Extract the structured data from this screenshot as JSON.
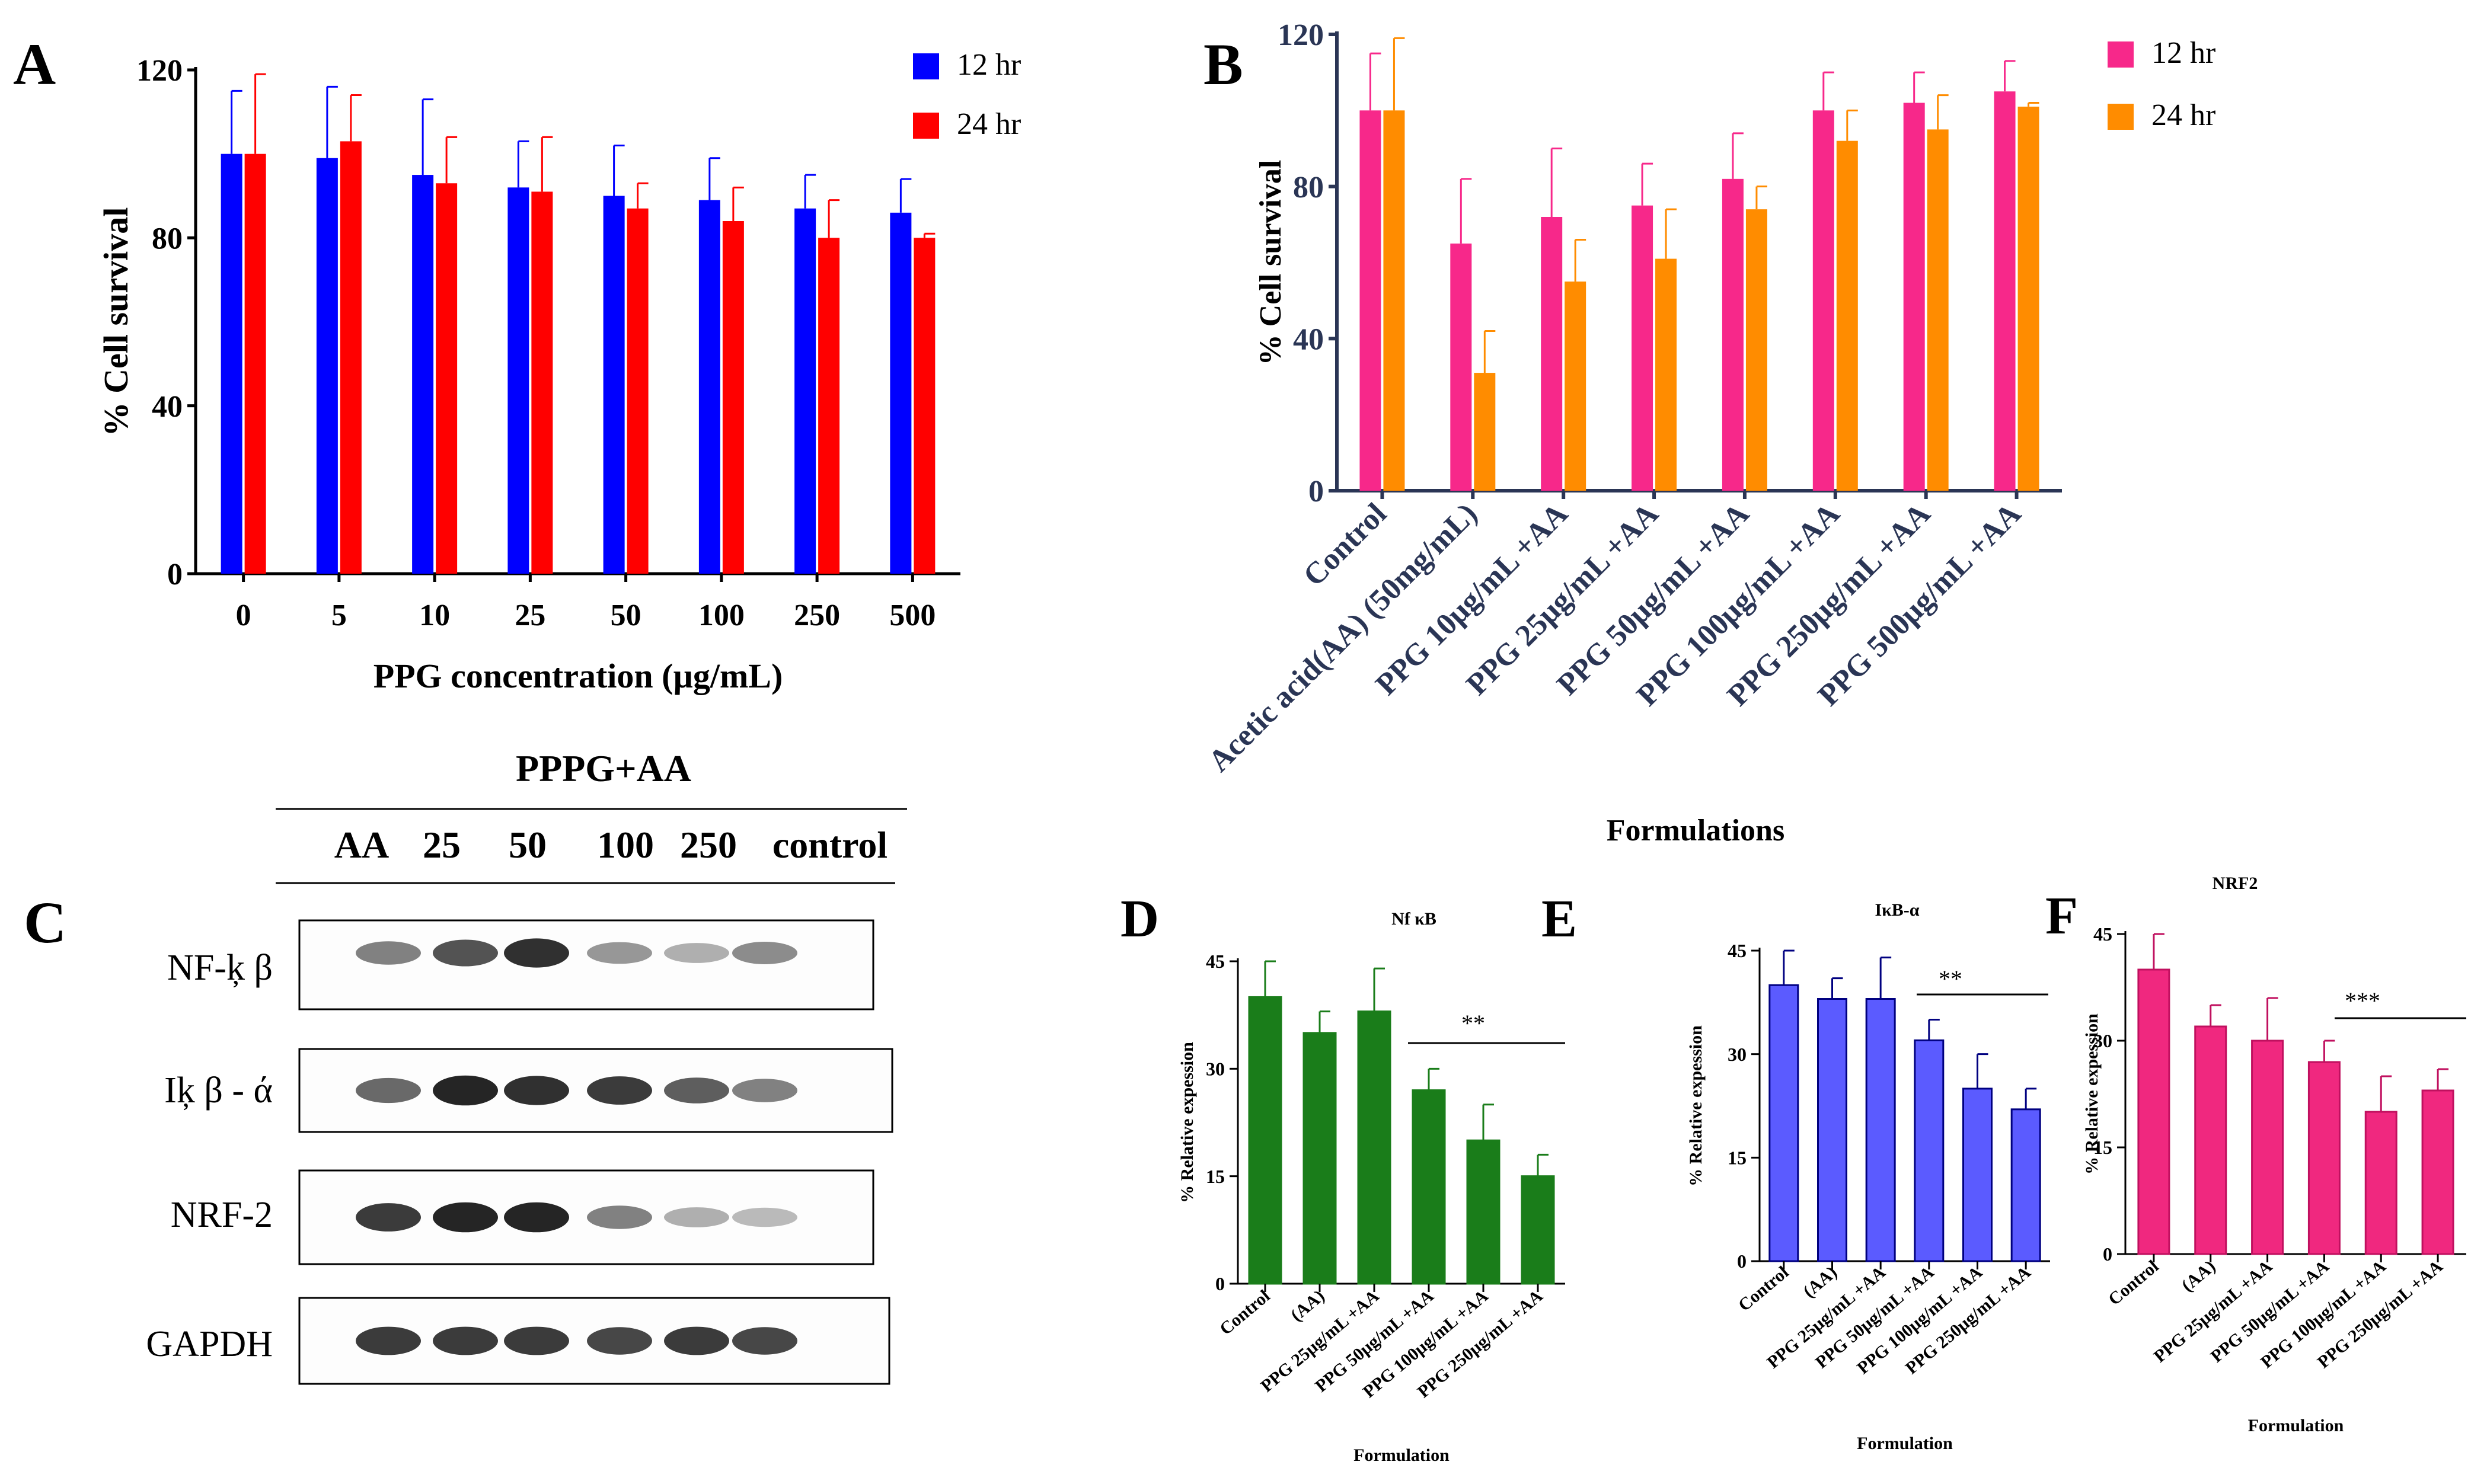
{
  "panel_labels": [
    "A",
    "B",
    "C",
    "D",
    "E",
    "F"
  ],
  "chart_data": [
    {
      "id": "A",
      "type": "bar",
      "title": "",
      "xlabel": "PPG concentration (µg/mL)",
      "ylabel": "% Cell survival",
      "ylim": [
        0,
        120
      ],
      "yticks": [
        "0",
        "40",
        "80",
        "120"
      ],
      "categories": [
        "0",
        "5",
        "10",
        "25",
        "50",
        "100",
        "250",
        "500"
      ],
      "series": [
        {
          "name": "12 hr",
          "color": "#0000ff",
          "values": [
            100,
            99,
            95,
            92,
            90,
            89,
            87,
            86
          ],
          "errors": [
            15,
            17,
            18,
            11,
            12,
            10,
            8,
            8
          ]
        },
        {
          "name": "24 hr",
          "color": "#ff0000",
          "values": [
            100,
            103,
            93,
            91,
            87,
            84,
            80,
            80
          ],
          "errors": [
            19,
            11,
            11,
            13,
            6,
            8,
            9,
            1
          ]
        }
      ],
      "legend": "top-right"
    },
    {
      "id": "B",
      "type": "bar",
      "title": "",
      "xlabel": "Formulations",
      "ylabel": "% Cell survival",
      "ylim": [
        0,
        120
      ],
      "yticks": [
        "0",
        "40",
        "80",
        "120"
      ],
      "categories": [
        "Control",
        "Acetic acid(AA) (50mg/mL)",
        "PPG 10µg/mL +AA",
        "PPG 25µg/mL +AA",
        "PPG 50µg/mL +AA",
        "PPG 100µg/mL +AA",
        "PPG 250µg/mL +AA",
        "PPG 500µg/mL +AA"
      ],
      "series": [
        {
          "name": "12 hr",
          "color": "#f7288a",
          "values": [
            100,
            65,
            72,
            75,
            82,
            100,
            102,
            105
          ],
          "errors": [
            15,
            17,
            18,
            11,
            12,
            10,
            8,
            8
          ]
        },
        {
          "name": "24 hr",
          "color": "#ff8c00",
          "values": [
            100,
            31,
            55,
            61,
            74,
            92,
            95,
            101
          ],
          "errors": [
            19,
            11,
            11,
            13,
            6,
            8,
            9,
            1
          ]
        }
      ],
      "legend": "top-right"
    },
    {
      "id": "D",
      "type": "bar",
      "title": "Nf κB",
      "xlabel": "Formulation",
      "ylabel": "% Relative expession",
      "ylim": [
        0,
        45
      ],
      "yticks": [
        "0",
        "15",
        "30",
        "45"
      ],
      "categories": [
        "Control",
        "(AA)",
        "PPG 25µg/mL +AA",
        "PPG 50µg/mL +AA",
        "PPG 100µg/mL +AA",
        "PPG 250µg/mL +AA"
      ],
      "series": [
        {
          "name": "Nf κB",
          "color": "#1a7d1a",
          "values": [
            40,
            35,
            38,
            27,
            20,
            15
          ],
          "errors": [
            5,
            3,
            6,
            3,
            5,
            3
          ]
        }
      ],
      "significance": "**"
    },
    {
      "id": "E",
      "type": "bar",
      "title": "IκB-α",
      "xlabel": "Formulation",
      "ylabel": "% Relative expession",
      "ylim": [
        0,
        45
      ],
      "yticks": [
        "0",
        "15",
        "30",
        "45"
      ],
      "categories": [
        "Control",
        "(AA)",
        "PPG 25µg/mL +AA",
        "PPG 50µg/mL +AA",
        "PPG 100µg/mL +AA",
        "PPG 250µg/mL +AA"
      ],
      "series": [
        {
          "name": "IκB-α",
          "color": "#5b5bff",
          "values": [
            40,
            38,
            38,
            32,
            25,
            22
          ],
          "errors": [
            5,
            3,
            6,
            3,
            5,
            3
          ]
        }
      ],
      "significance": "**"
    },
    {
      "id": "F",
      "type": "bar",
      "title": "NRF2",
      "xlabel": "Formulation",
      "ylabel": "% Relative expession",
      "ylim": [
        0,
        45
      ],
      "yticks": [
        "0",
        "15",
        "30",
        "45"
      ],
      "categories": [
        "Control",
        "(AA)",
        "PPG 25µg/mL +AA",
        "PPG 50µg/mL +AA",
        "PPG 100µg/mL +AA",
        "PPG 250µg/mL +AA"
      ],
      "series": [
        {
          "name": "NRF2",
          "color": "#f0287f",
          "values": [
            40,
            32,
            30,
            27,
            20,
            23
          ],
          "errors": [
            5,
            3,
            6,
            3,
            5,
            3
          ]
        }
      ],
      "significance": "***"
    }
  ],
  "blot": {
    "header": "PPPG+AA",
    "lanes": [
      "AA",
      "25",
      "50",
      "100",
      "250",
      "control"
    ],
    "rows": [
      {
        "label": "NF-ķ β",
        "intensity": [
          0.55,
          0.75,
          0.9,
          0.45,
          0.35,
          0.5
        ]
      },
      {
        "label": "Iķ β - ά",
        "intensity": [
          0.65,
          0.95,
          0.9,
          0.85,
          0.7,
          0.55
        ]
      },
      {
        "label": "NRF-2",
        "intensity": [
          0.85,
          0.95,
          0.95,
          0.55,
          0.35,
          0.3
        ]
      },
      {
        "label": "GAPDH",
        "intensity": [
          0.85,
          0.85,
          0.85,
          0.8,
          0.85,
          0.8
        ]
      }
    ]
  }
}
